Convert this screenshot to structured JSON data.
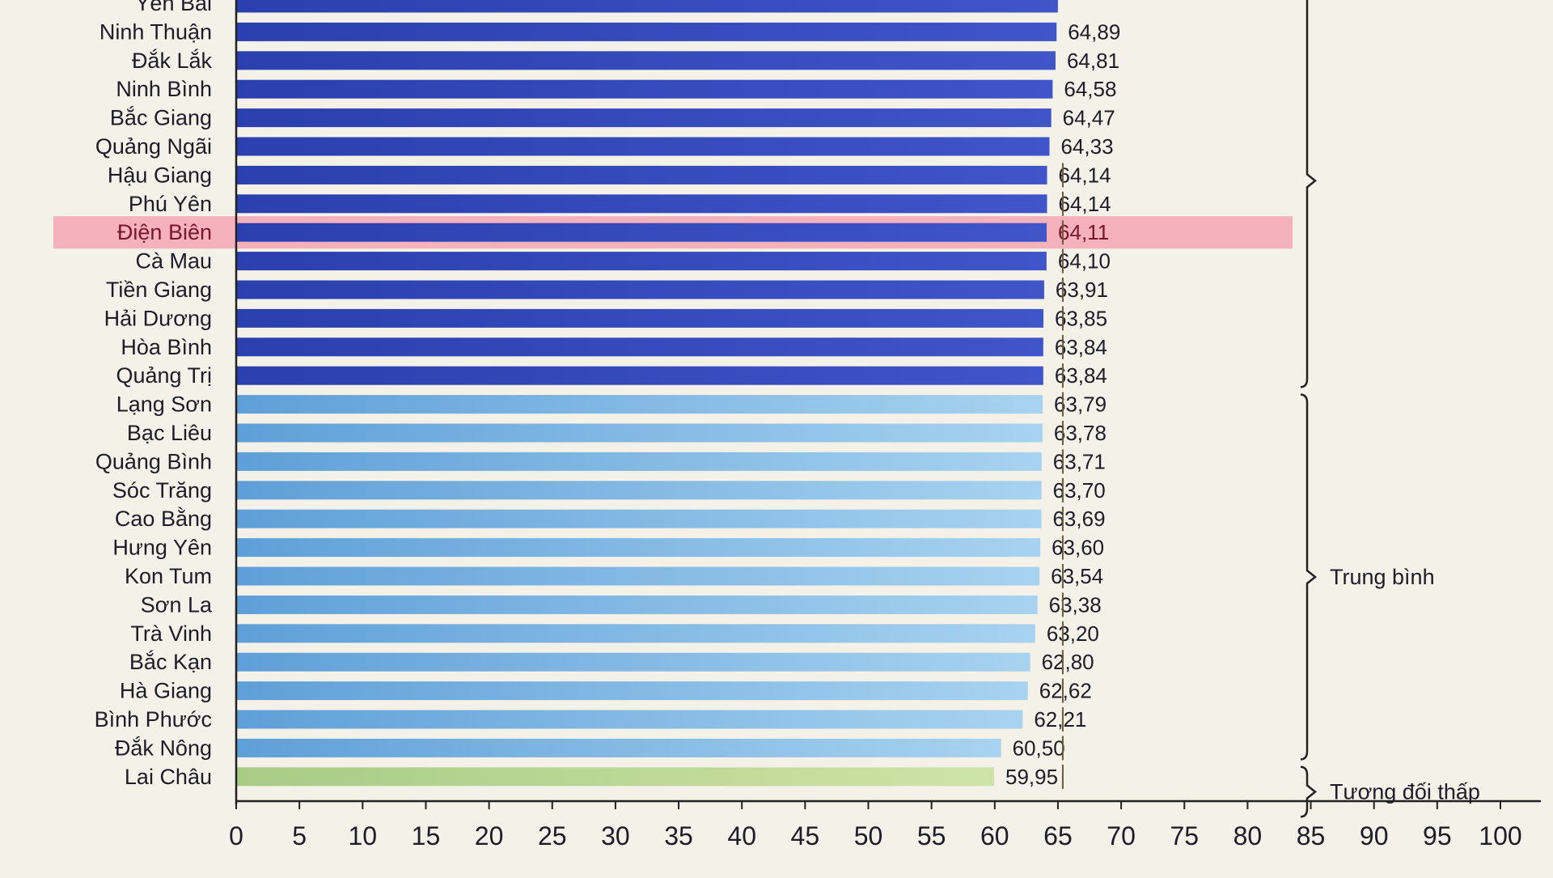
{
  "chart_data": {
    "type": "bar",
    "orientation": "horizontal",
    "xlim": [
      0,
      100
    ],
    "x_ticks": [
      "0",
      "5",
      "10",
      "15",
      "20",
      "25",
      "30",
      "35",
      "40",
      "45",
      "50",
      "55",
      "60",
      "65",
      "70",
      "75",
      "80",
      "85",
      "90",
      "95",
      "100"
    ],
    "grid": false,
    "highlighted_category": "Điện Biên",
    "highlight_color": "#f4a6b4",
    "groups": [
      {
        "label": "",
        "from": 0,
        "to": 13,
        "color_start": "#2b3fae",
        "color_end": "#3f55c8"
      },
      {
        "label": "Trung bình",
        "from": 14,
        "to": 26,
        "color_start": "#5f9fd8",
        "color_end": "#a8d3f0"
      },
      {
        "label": "Tương đối thấp",
        "from": 27,
        "to": 28,
        "color_start": "#a8cb86",
        "color_end": "#cfe3a8"
      }
    ],
    "categories": [
      "Yên Bái",
      "Ninh Thuận",
      "Đắk Lắk",
      "Ninh Bình",
      "Bắc Giang",
      "Quảng Ngãi",
      "Hậu Giang",
      "Phú Yên",
      "Điện Biên",
      "Cà Mau",
      "Tiền Giang",
      "Hải Dương",
      "Hòa Bình",
      "Quảng Trị",
      "Lạng Sơn",
      "Bạc Liêu",
      "Quảng Bình",
      "Sóc Trăng",
      "Cao Bằng",
      "Hưng Yên",
      "Kon Tum",
      "Sơn La",
      "Trà Vinh",
      "Bắc Kạn",
      "Hà Giang",
      "Bình Phước",
      "Đắk Nông",
      "Lai Châu"
    ],
    "values": [
      65.0,
      64.89,
      64.81,
      64.58,
      64.47,
      64.33,
      64.14,
      64.14,
      64.11,
      64.1,
      63.91,
      63.85,
      63.84,
      63.84,
      63.79,
      63.78,
      63.71,
      63.7,
      63.69,
      63.6,
      63.54,
      63.38,
      63.2,
      62.8,
      62.62,
      62.21,
      60.5,
      59.95
    ],
    "value_labels": [
      "",
      "64,89",
      "64,81",
      "64,58",
      "64,47",
      "64,33",
      "64,14",
      "64,14",
      "64,11",
      "64,10",
      "63,91",
      "63,85",
      "63,84",
      "63,84",
      "63,79",
      "63,78",
      "63,71",
      "63,70",
      "63,69",
      "63,60",
      "63,54",
      "63,38",
      "63,20",
      "62,80",
      "62,62",
      "62,21",
      "60,50",
      "59,95"
    ]
  }
}
